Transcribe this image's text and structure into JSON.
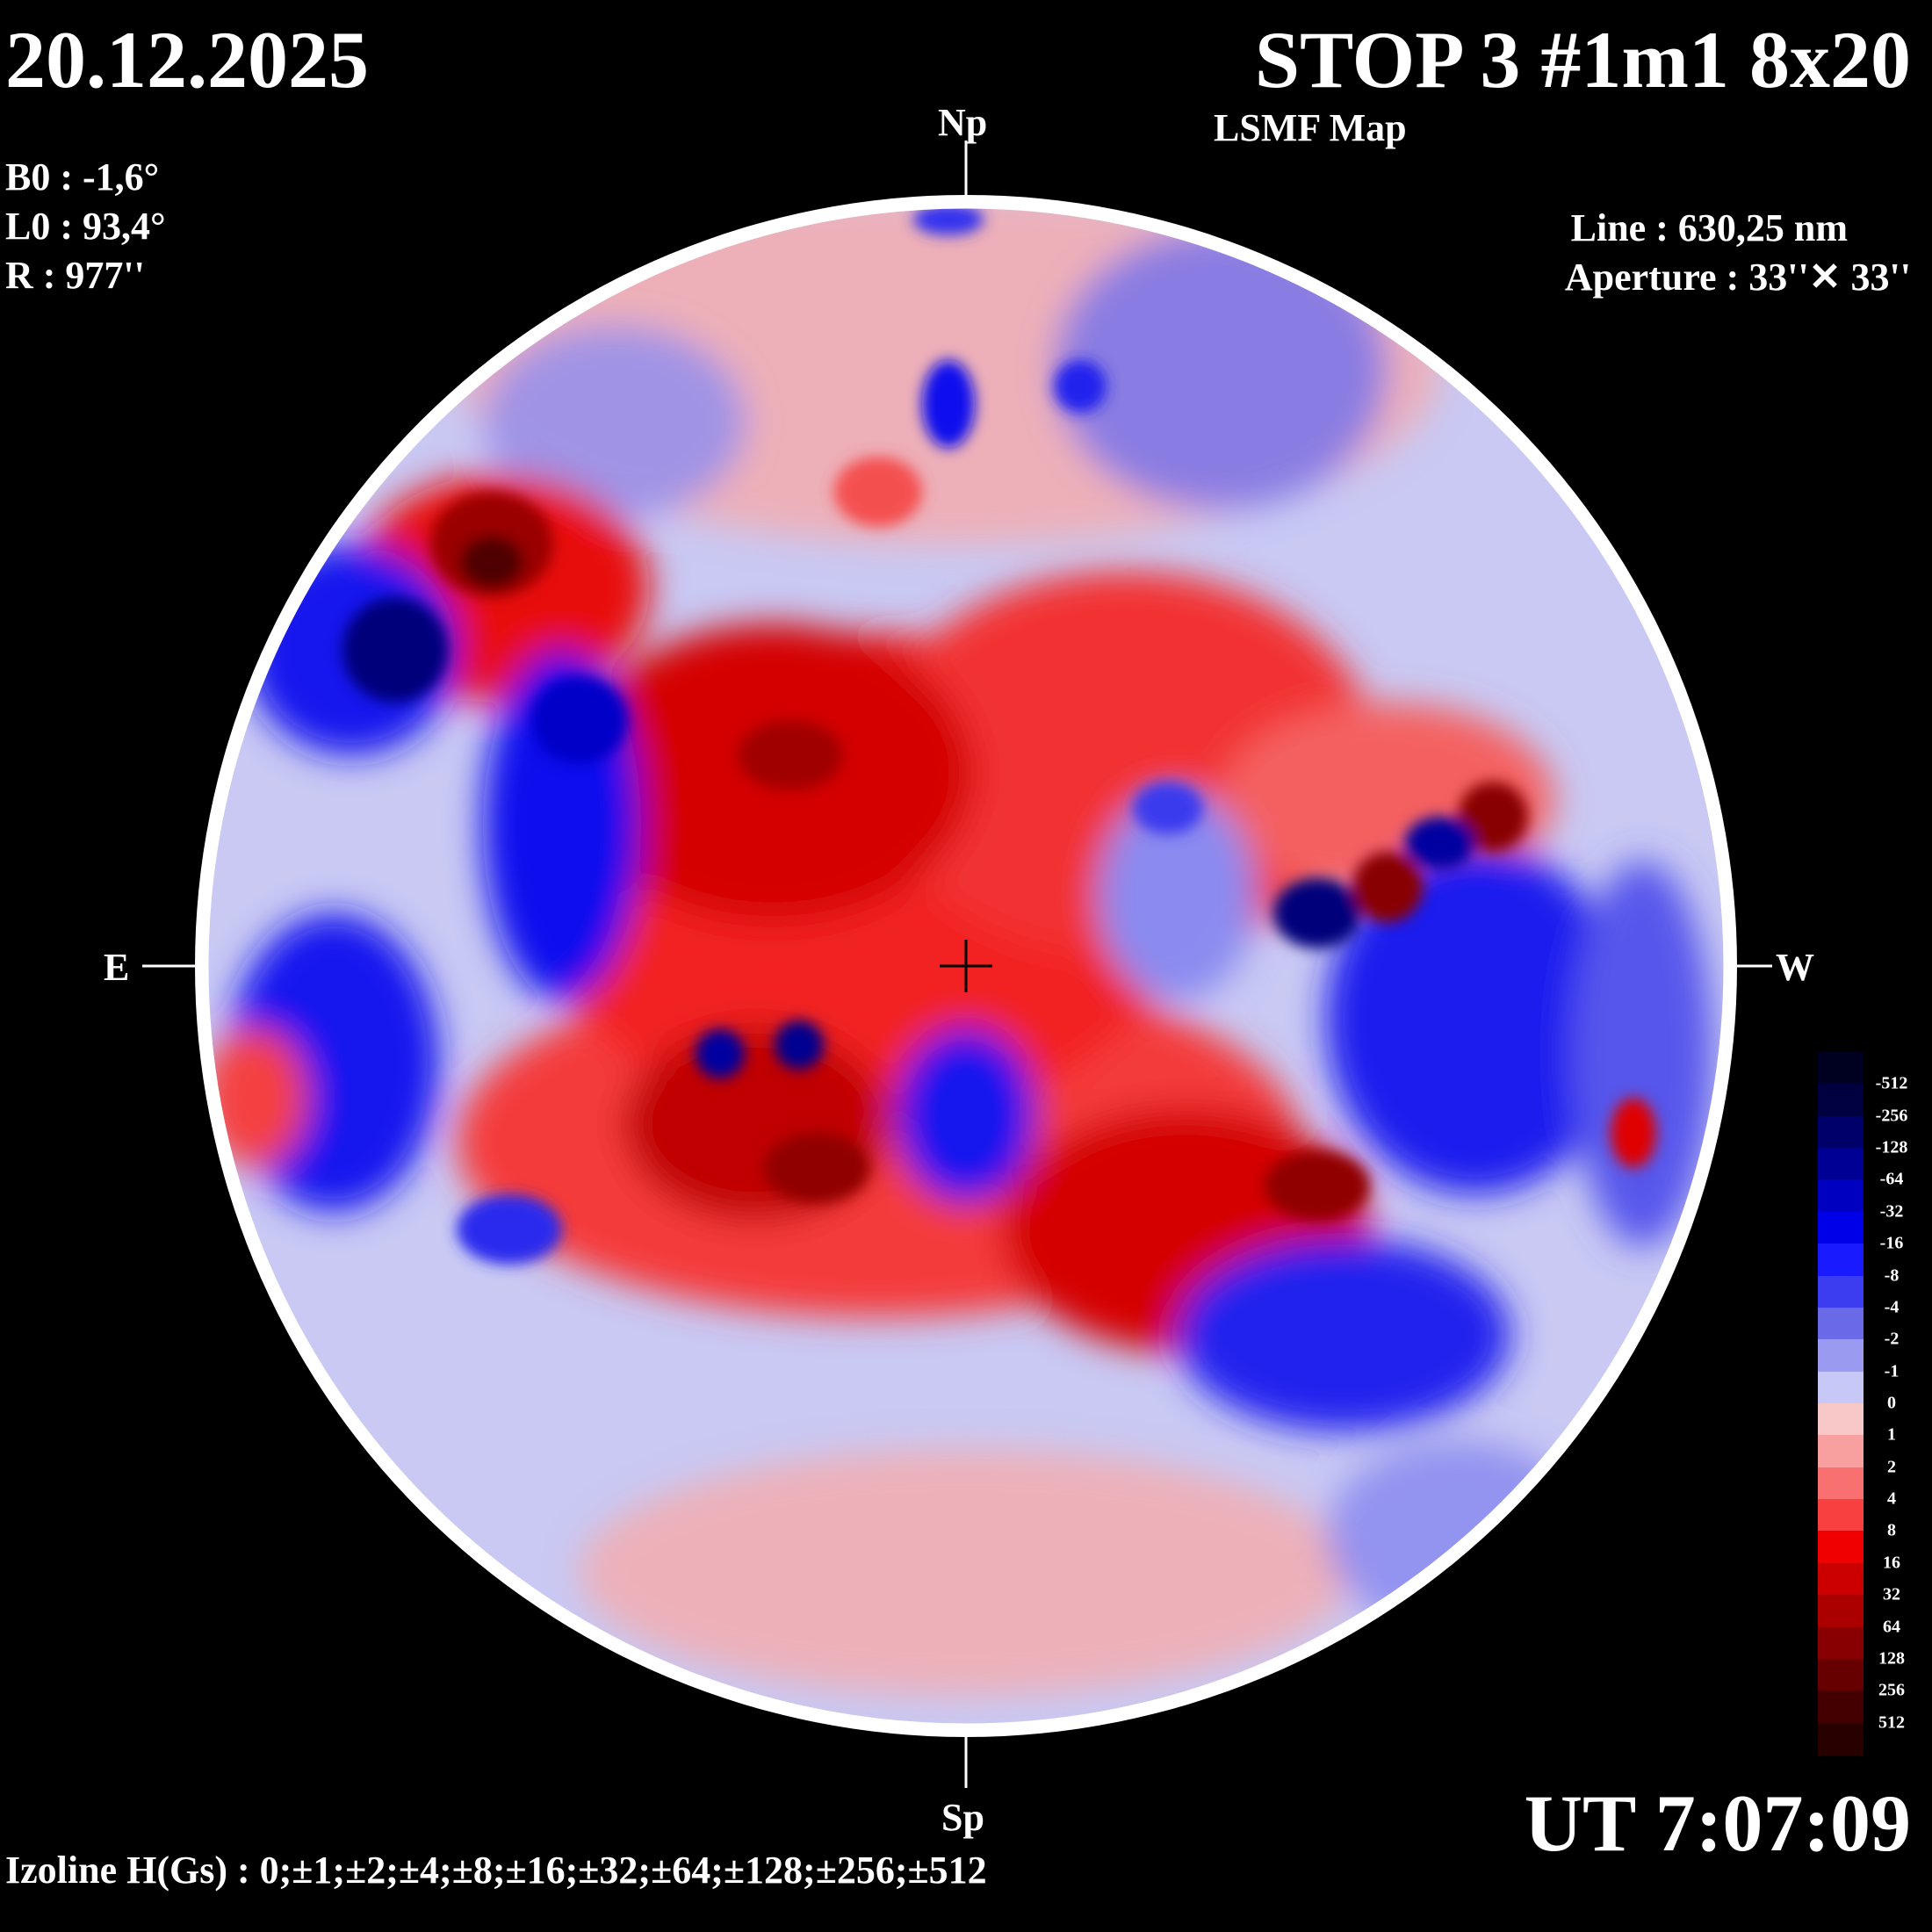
{
  "header": {
    "date": "20.12.2025",
    "title": "STOP 3 #1m1 8x20",
    "subtitle": "LSMF  Map"
  },
  "params": {
    "b0": "B0 : -1,6°",
    "l0": "L0 : 93,4°",
    "r": "R  : 977''"
  },
  "instrument": {
    "line": "Line :  630,25 nm",
    "aperture": "Aperture : 33''✕ 33''"
  },
  "time": "UT 7:07:09",
  "izoline": "Izoline H(Gs) : 0;±1;±2;±4;±8;±16;±32;±64;±128;±256;±512",
  "directions": {
    "north": "Np",
    "south": "Sp",
    "east": "E",
    "west": "W"
  },
  "colorbar": {
    "labels": [
      "-512",
      "-256",
      "-128",
      "-64",
      "-32",
      "-16",
      "-8",
      "-4",
      "-2",
      "-1",
      "0",
      "1",
      "2",
      "4",
      "8",
      "16",
      "32",
      "64",
      "128",
      "256",
      "512"
    ],
    "colors": [
      "#000020",
      "#000040",
      "#00006a",
      "#000095",
      "#0000c0",
      "#0000e8",
      "#1a1aff",
      "#3c3cf0",
      "#6a6ae8",
      "#9a9af0",
      "#c8c8f6",
      "#f8c8c8",
      "#f8a0a0",
      "#f87070",
      "#f84040",
      "#f00000",
      "#cc0000",
      "#aa0000",
      "#880000",
      "#660000",
      "#440000",
      "#280000"
    ]
  }
}
